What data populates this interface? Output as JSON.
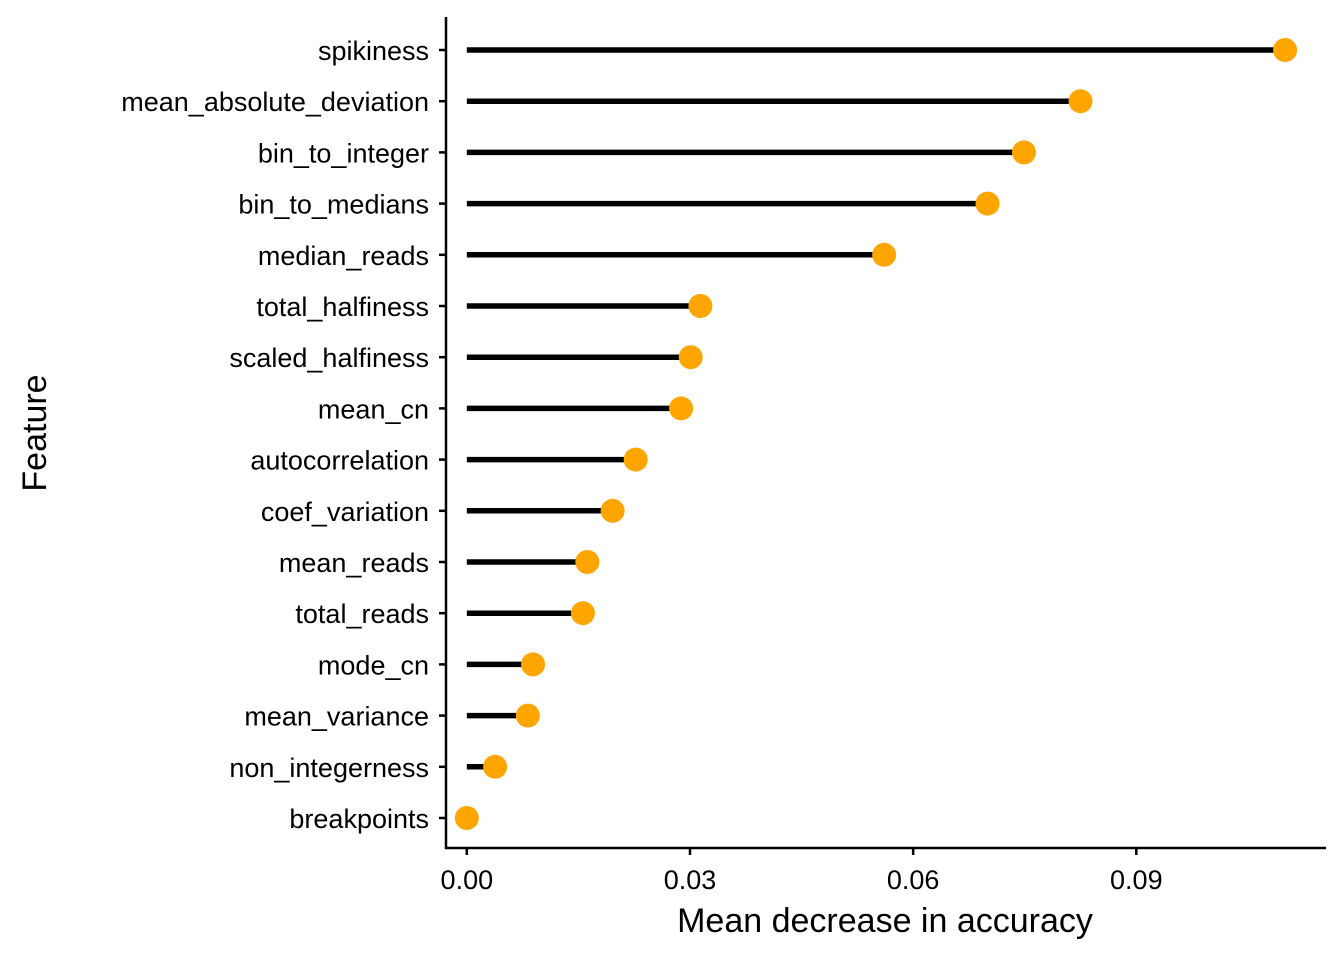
{
  "chart_data": {
    "type": "lollipop",
    "orientation": "horizontal",
    "xlabel": "Mean decrease in accuracy",
    "ylabel": "Feature",
    "xlim": [
      -0.0028,
      0.1155
    ],
    "x_ticks": [
      0.0,
      0.03,
      0.06,
      0.09
    ],
    "x_tick_labels": [
      "0.00",
      "0.03",
      "0.06",
      "0.09"
    ],
    "grid": false,
    "legend": "none",
    "colors": {
      "stem": "#000000",
      "point": "#FFA500",
      "axis": "#000000"
    },
    "categories": [
      "spikiness",
      "mean_absolute_deviation",
      "bin_to_integer",
      "bin_to_medians",
      "median_reads",
      "total_halfiness",
      "scaled_halfiness",
      "mean_cn",
      "autocorrelation",
      "coef_variation",
      "mean_reads",
      "total_reads",
      "mode_cn",
      "mean_variance",
      "non_integerness",
      "breakpoints"
    ],
    "values": [
      0.11,
      0.0825,
      0.0749,
      0.07,
      0.0561,
      0.0314,
      0.0301,
      0.0288,
      0.0227,
      0.0196,
      0.0162,
      0.0156,
      0.0089,
      0.0082,
      0.0038,
      0.0
    ]
  }
}
